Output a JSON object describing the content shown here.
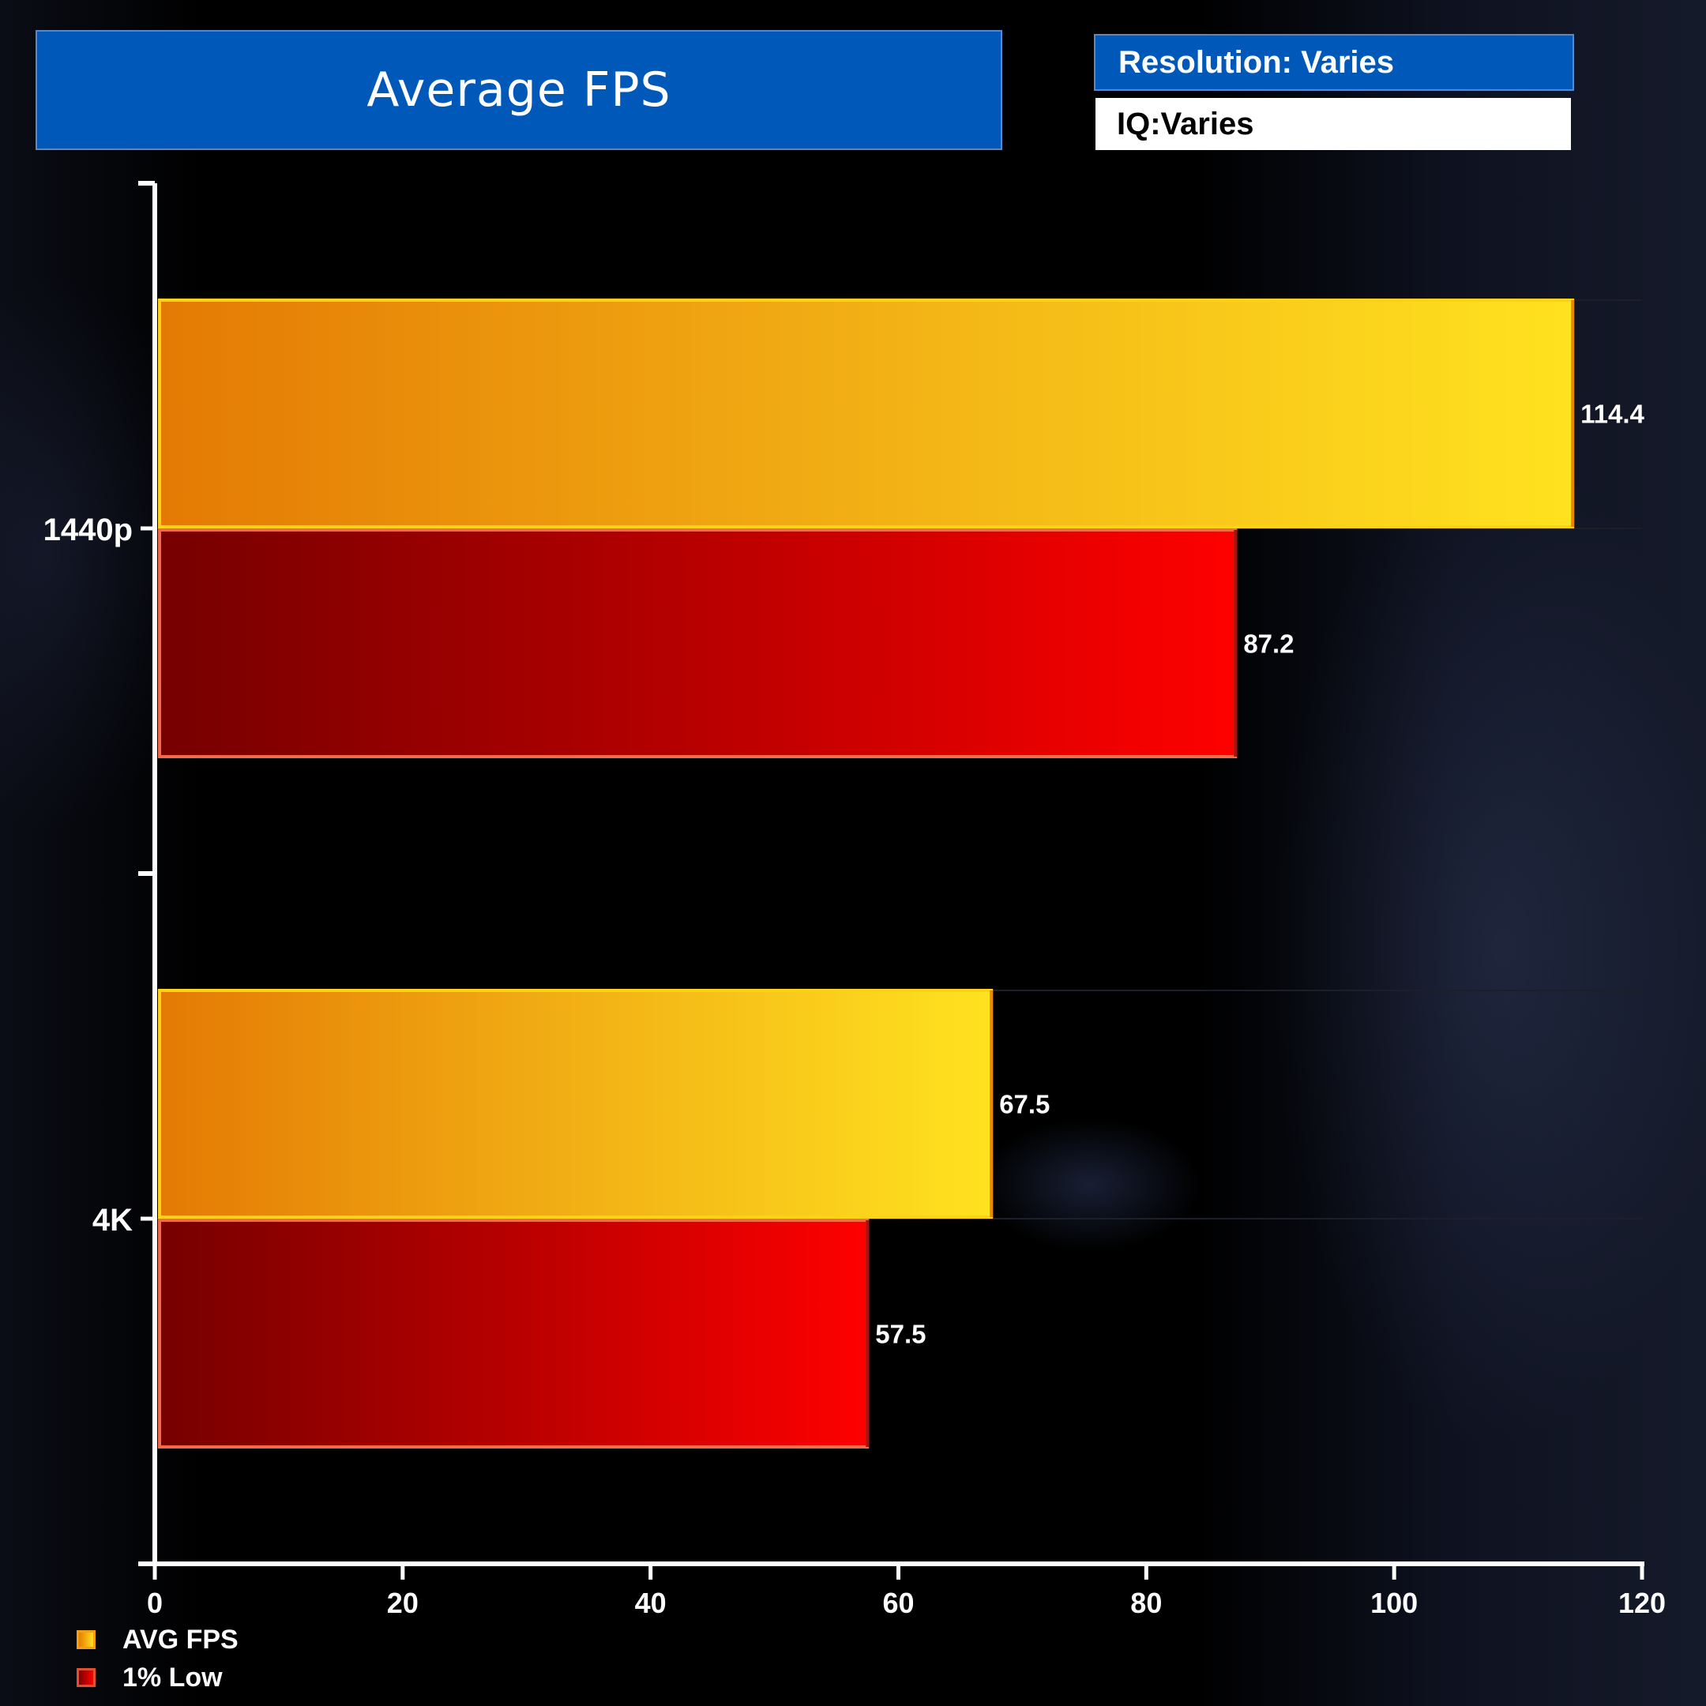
{
  "header": {
    "title": "Average FPS",
    "resolution": "Resolution: Varies",
    "iq": "IQ:Varies"
  },
  "chart_data": {
    "type": "bar",
    "orientation": "horizontal",
    "title": "Average FPS",
    "categories": [
      "1440p",
      "4K"
    ],
    "series": [
      {
        "name": "AVG FPS",
        "values": [
          114.4,
          67.5
        ],
        "color": "#f5b013"
      },
      {
        "name": "1% Low",
        "values": [
          87.2,
          57.5
        ],
        "color": "#cc0000"
      }
    ],
    "xlim": [
      0,
      120
    ],
    "xticks": [
      0,
      20,
      40,
      60,
      80,
      100,
      120
    ],
    "xlabel": "",
    "ylabel": "",
    "grid": false,
    "legend_position": "bottom-left",
    "data_labels": [
      "114.4",
      "87.2",
      "67.5",
      "57.5"
    ]
  },
  "legend": {
    "items": [
      {
        "label": "AVG FPS"
      },
      {
        "label": "1% Low"
      }
    ]
  }
}
